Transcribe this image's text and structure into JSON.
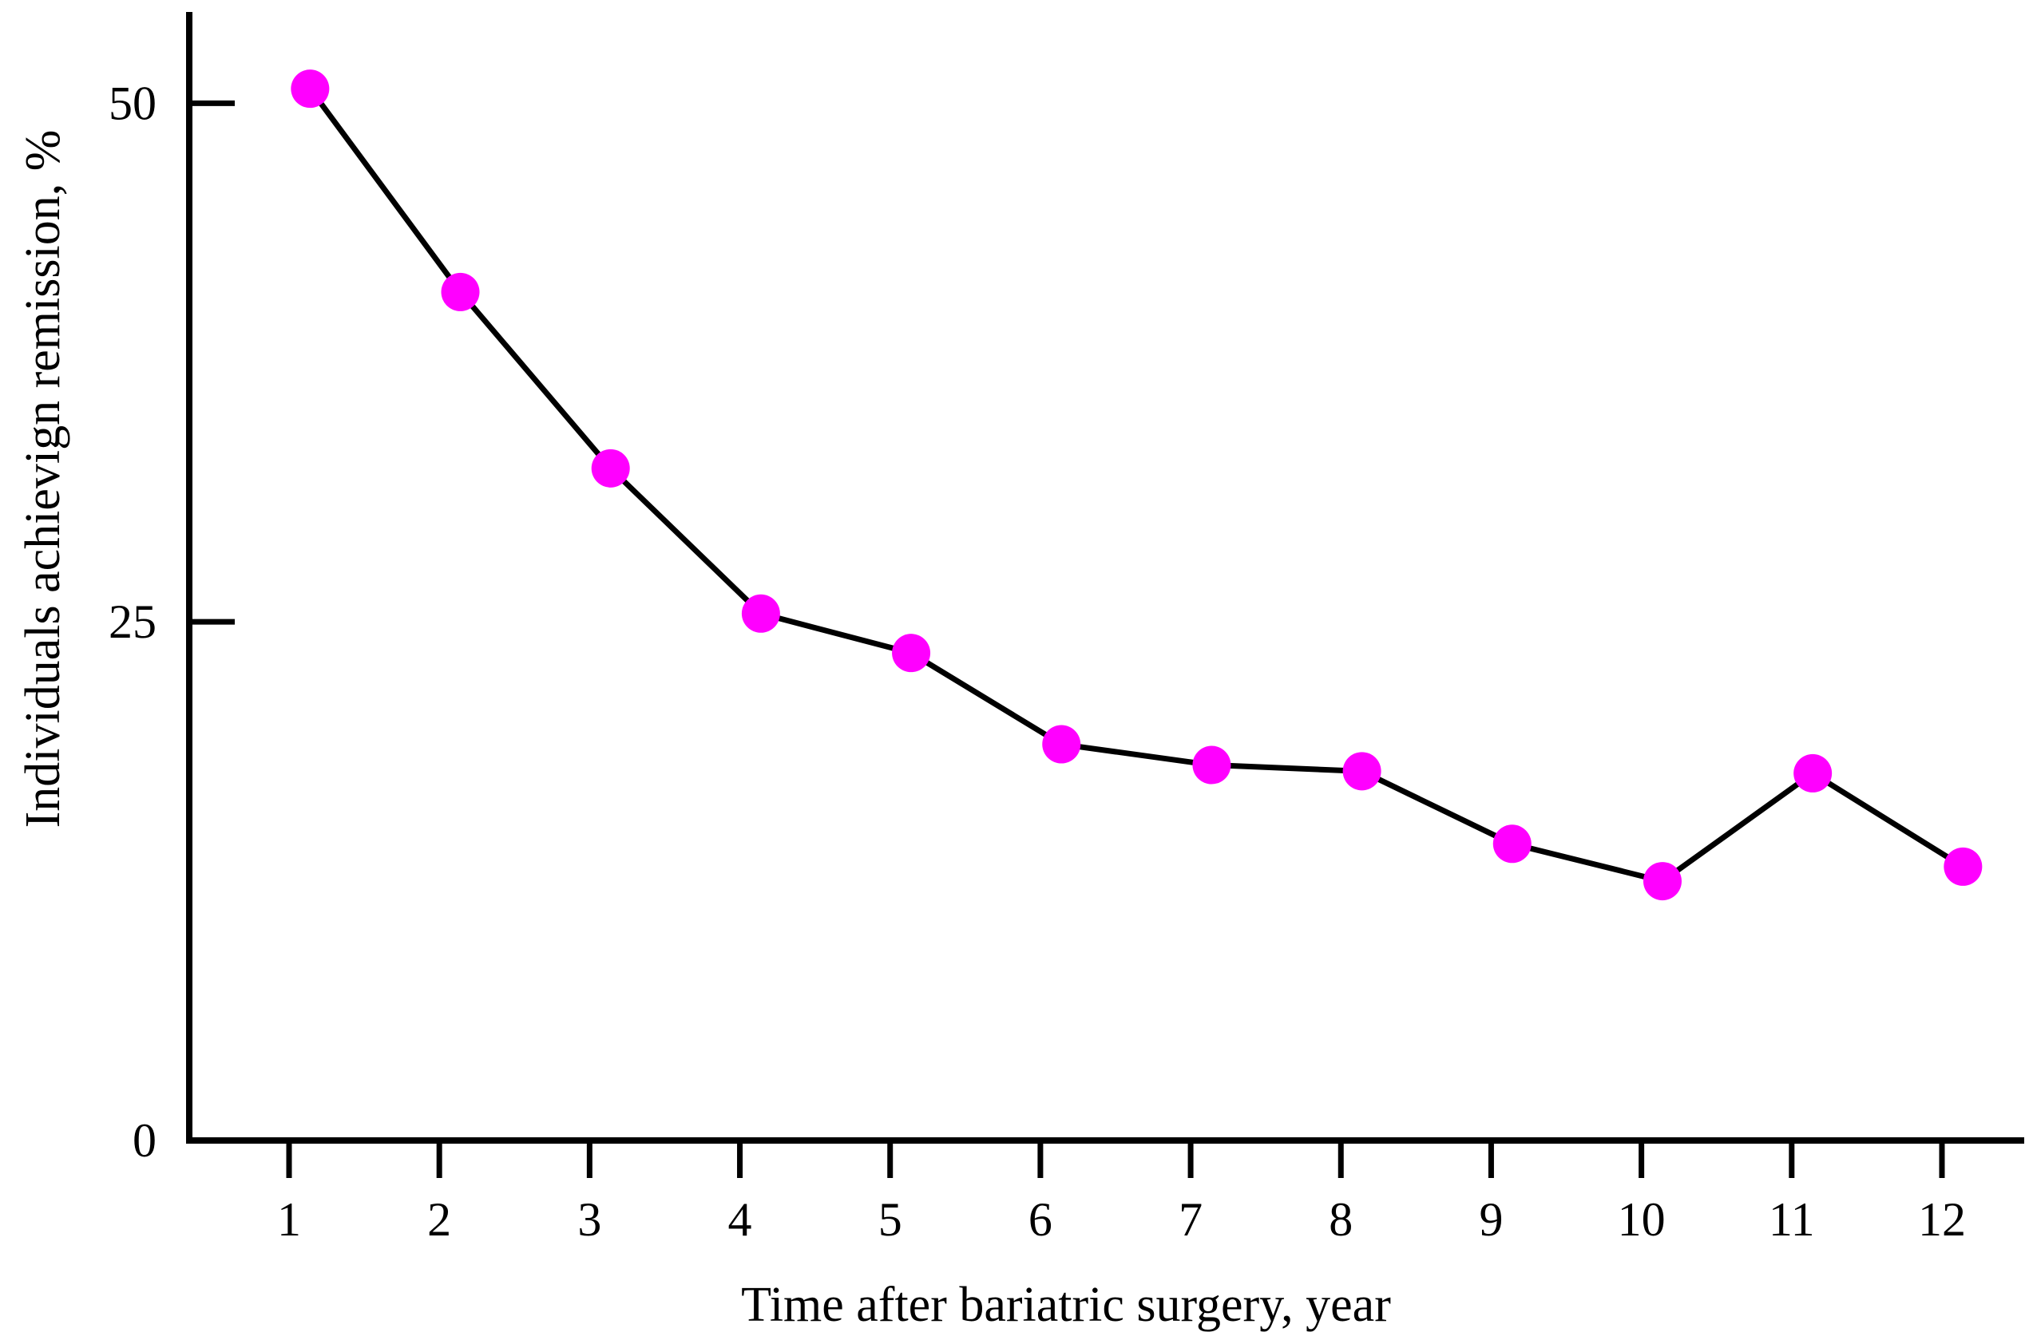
{
  "page": {
    "background": "#ffffff",
    "description": "Line chart of diabetes remission rate versus years after bariatric surgery"
  },
  "chart_data": {
    "type": "line",
    "title": "",
    "xlabel": "Time after bariatric surgery, year",
    "ylabel": "Individuals achievign remission, %",
    "x": [
      1,
      2,
      3,
      4,
      5,
      6,
      7,
      8,
      9,
      10,
      11,
      12
    ],
    "xtick_labels": [
      "1",
      "2",
      "3",
      "4",
      "5",
      "6",
      "7",
      "8",
      "9",
      "10",
      "11",
      "12"
    ],
    "series": [
      {
        "name": "individuals-achieving-remission",
        "values": [
          50.7,
          40.9,
          32.4,
          25.4,
          23.5,
          19.1,
          18.1,
          17.8,
          14.3,
          12.5,
          17.7,
          13.2
        ],
        "line_color": "#000000",
        "marker": "circle",
        "marker_color": "#ff00ff"
      }
    ],
    "yticks": [
      {
        "value": 0,
        "label": "0"
      },
      {
        "value": 25,
        "label": "25"
      },
      {
        "value": 50,
        "label": "50"
      }
    ],
    "ylim": [
      0,
      54.4
    ],
    "x_points_offset_years": 0.14,
    "grid": false,
    "legend": "none",
    "axis_color": "#000000",
    "text_color": "#000000"
  }
}
